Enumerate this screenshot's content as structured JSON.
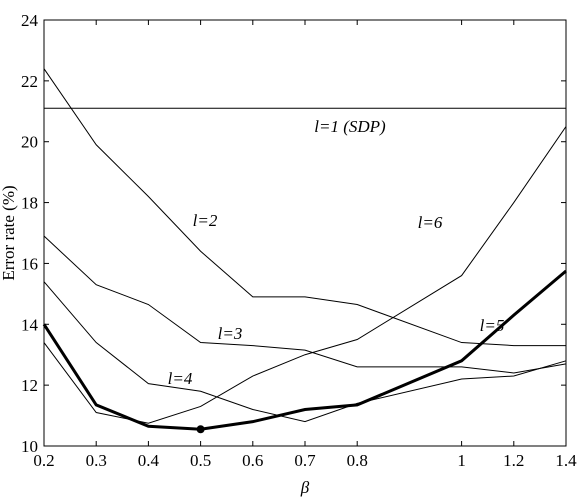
{
  "chart_data": {
    "type": "line",
    "x_label": "β",
    "y_label": "Error rate (%)",
    "x": [
      0.2,
      0.3,
      0.4,
      0.5,
      0.6,
      0.7,
      0.8,
      1,
      1.2,
      1.4
    ],
    "xlim": [
      0.2,
      1.4
    ],
    "xticks": [
      0.2,
      0.3,
      0.4,
      0.5,
      0.6,
      0.7,
      0.8,
      1,
      1.2,
      1.4
    ],
    "ylim": [
      10,
      24
    ],
    "yticks": [
      10,
      12,
      14,
      16,
      18,
      20,
      22,
      24
    ],
    "mark_min_of_thick": true,
    "series": [
      {
        "name": "l=1 (SDP)",
        "color": "#000000",
        "linewidth": 1,
        "values": [
          21.1,
          21.1,
          21.1,
          21.1,
          21.1,
          21.1,
          21.1,
          21.1,
          21.1,
          21.1
        ]
      },
      {
        "name": "l=2",
        "color": "#000000",
        "linewidth": 1,
        "values": [
          22.4,
          19.9,
          18.2,
          16.4,
          14.9,
          14.9,
          14.65,
          13.4,
          13.3,
          13.3
        ]
      },
      {
        "name": "l=3",
        "color": "#000000",
        "linewidth": 1,
        "values": [
          16.9,
          15.3,
          14.65,
          13.4,
          13.3,
          13.15,
          12.6,
          12.6,
          12.4,
          12.7
        ]
      },
      {
        "name": "l=4",
        "color": "#000000",
        "linewidth": 1,
        "values": [
          15.4,
          13.4,
          12.05,
          11.8,
          11.2,
          10.8,
          11.4,
          12.2,
          12.3,
          12.8
        ]
      },
      {
        "name": "l=5",
        "color": "#000000",
        "linewidth": 3,
        "values": [
          14.0,
          11.35,
          10.65,
          10.55,
          10.8,
          11.2,
          11.35,
          12.8,
          14.3,
          15.75
        ]
      },
      {
        "name": "l=6",
        "color": "#000000",
        "linewidth": 1,
        "values": [
          13.4,
          11.1,
          10.75,
          11.3,
          12.3,
          13.0,
          13.5,
          15.6,
          18.0,
          20.5
        ]
      }
    ]
  }
}
